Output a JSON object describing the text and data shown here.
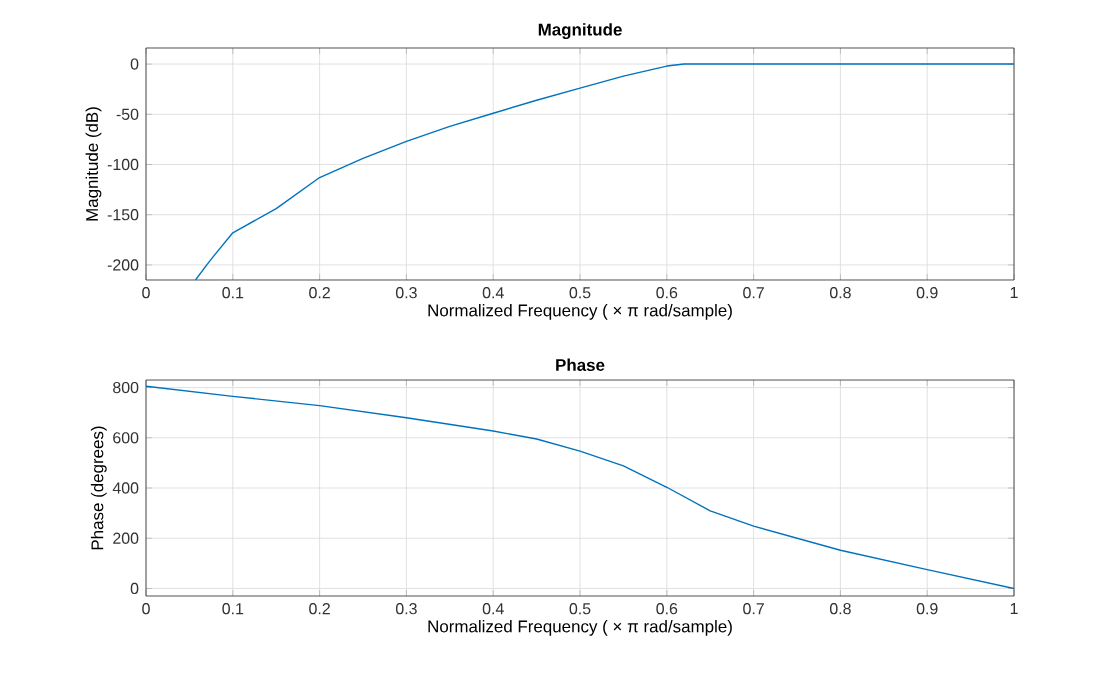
{
  "chart_data": [
    {
      "type": "line",
      "title": "Magnitude",
      "xlabel": "Normalized Frequency  ( × π rad/sample)",
      "ylabel": "Magnitude (dB)",
      "x": [
        0.057,
        0.07,
        0.08,
        0.1,
        0.15,
        0.2,
        0.25,
        0.3,
        0.35,
        0.4,
        0.45,
        0.5,
        0.55,
        0.6,
        0.62,
        0.65,
        0.7,
        0.8,
        0.9,
        1.0
      ],
      "series": [
        {
          "color": "#0072bd",
          "values": [
            -215,
            -200,
            -189,
            -168,
            -144,
            -113,
            -94,
            -77,
            -62,
            -49,
            -36,
            -24,
            -12,
            -2,
            0,
            0,
            0,
            0,
            0,
            0
          ]
        }
      ],
      "xlim": [
        0,
        1
      ],
      "ylim": [
        -215,
        16
      ],
      "xticks": [
        0,
        0.1,
        0.2,
        0.3,
        0.4,
        0.5,
        0.6,
        0.7,
        0.8,
        0.9,
        1
      ],
      "yticks": [
        -200,
        -150,
        -100,
        -50,
        0
      ],
      "grid": true
    },
    {
      "type": "line",
      "title": "Phase",
      "xlabel": "Normalized Frequency  ( × π rad/sample)",
      "ylabel": "Phase (degrees)",
      "x": [
        0,
        0.1,
        0.2,
        0.3,
        0.4,
        0.45,
        0.5,
        0.55,
        0.6,
        0.65,
        0.7,
        0.75,
        0.8,
        0.9,
        1.0
      ],
      "series": [
        {
          "color": "#0072bd",
          "values": [
            805,
            765,
            728,
            680,
            627,
            595,
            547,
            488,
            403,
            309,
            248,
            200,
            152,
            75,
            0
          ]
        }
      ],
      "xlim": [
        0,
        1
      ],
      "ylim": [
        -30,
        830
      ],
      "xticks": [
        0,
        0.1,
        0.2,
        0.3,
        0.4,
        0.5,
        0.6,
        0.7,
        0.8,
        0.9,
        1
      ],
      "yticks": [
        0,
        200,
        400,
        600,
        800
      ],
      "grid": true
    }
  ]
}
